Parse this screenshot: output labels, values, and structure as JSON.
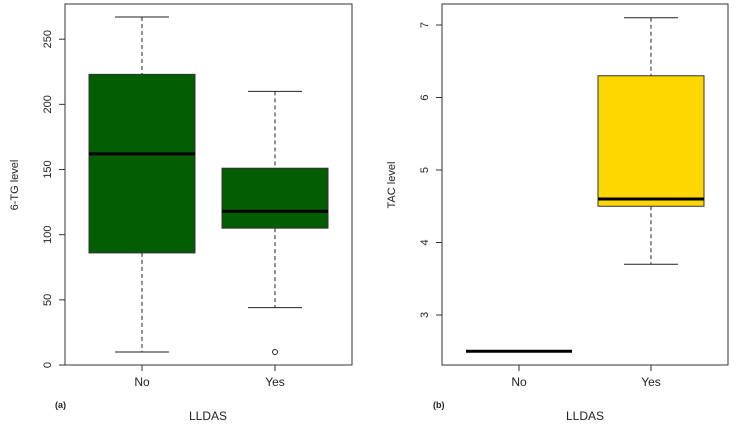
{
  "chart_data": [
    {
      "type": "boxplot",
      "panel_label": "(a)",
      "xlabel": "LLDAS",
      "ylabel": "6-TG level",
      "categories": [
        "No",
        "Yes"
      ],
      "yticks": [
        0,
        50,
        100,
        150,
        200,
        250
      ],
      "ylim": [
        0,
        277
      ],
      "fill": "#035E03",
      "boxes": [
        {
          "category": "No",
          "whisker_low": 10,
          "q1": 86,
          "median": 162,
          "q3": 223,
          "whisker_high": 267,
          "outliers": []
        },
        {
          "category": "Yes",
          "whisker_low": 44,
          "q1": 105,
          "median": 118,
          "q3": 151,
          "whisker_high": 210,
          "outliers": [
            10
          ]
        }
      ]
    },
    {
      "type": "boxplot",
      "panel_label": "(b)",
      "xlabel": "LLDAS",
      "ylabel": "TAC level",
      "categories": [
        "No",
        "Yes"
      ],
      "yticks": [
        3,
        4,
        5,
        6,
        7
      ],
      "ylim": [
        2.31,
        7.29
      ],
      "fill": "#FFD700",
      "boxes": [
        {
          "category": "No",
          "whisker_low": 2.5,
          "q1": 2.5,
          "median": 2.5,
          "q3": 2.5,
          "whisker_high": 2.5,
          "outliers": []
        },
        {
          "category": "Yes",
          "whisker_low": 3.7,
          "q1": 4.5,
          "median": 4.6,
          "q3": 6.3,
          "whisker_high": 7.1,
          "outliers": []
        }
      ]
    }
  ]
}
